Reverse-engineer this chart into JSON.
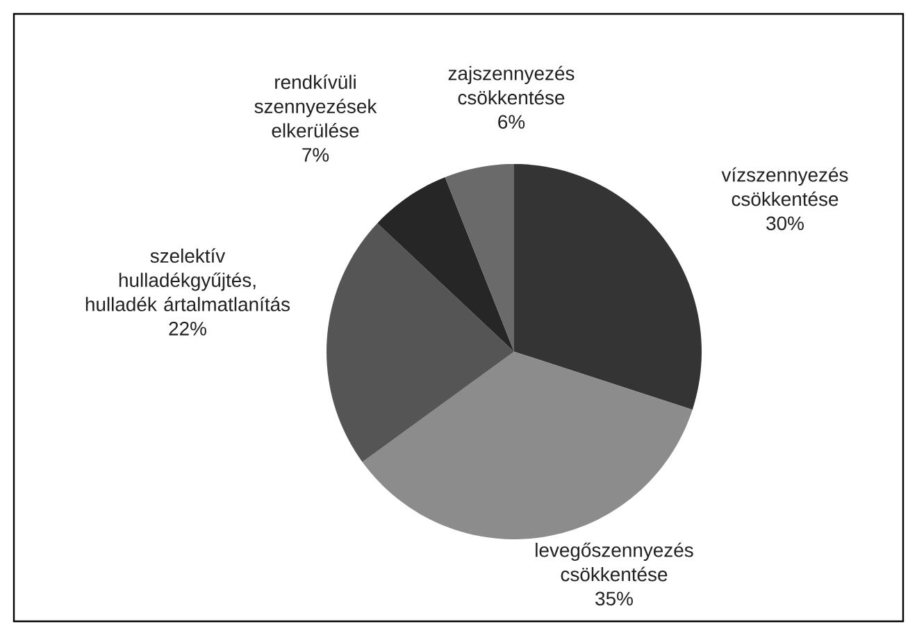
{
  "chart_data": {
    "type": "pie",
    "categories": [
      "vízszennyezés csökkentése",
      "levegőszennyezés csökkentése",
      "szelektív hulladékgyűjtés, hulladék ártalmatlanítás",
      "rendkívüli szennyezések elkerülése",
      "zajszennyezés csökkentése"
    ],
    "values": [
      30,
      35,
      22,
      7,
      6
    ],
    "value_labels": [
      "30%",
      "35%",
      "22%",
      "7%",
      "6%"
    ],
    "colors": [
      "#343434",
      "#8c8c8c",
      "#555555",
      "#262626",
      "#6a6a6a"
    ]
  }
}
